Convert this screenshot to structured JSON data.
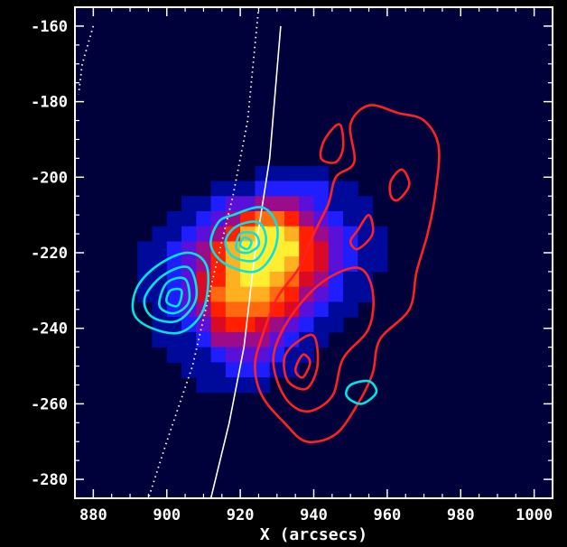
{
  "chart_data": {
    "type": "heatmap",
    "title": "",
    "xlabel": "X (arcsecs)",
    "ylabel": "",
    "xlim": [
      875,
      1005
    ],
    "ylim": [
      -285,
      -155
    ],
    "x_ticks": [
      880,
      900,
      920,
      940,
      960,
      980,
      1000
    ],
    "y_ticks": [
      -160,
      -180,
      -200,
      -220,
      -240,
      -260,
      -280
    ],
    "x_tick_labels": [
      "880",
      "900",
      "920",
      "940",
      "960",
      "980",
      "1000"
    ],
    "y_tick_labels": [
      "-160",
      "-180",
      "-200",
      "-220",
      "-240",
      "-260",
      "-280"
    ],
    "background_color": "#00003a",
    "image": {
      "description_colormap": "blue-red-yellow",
      "x0": 876,
      "y0": -285,
      "cell": 4,
      "rows_top_to_bottom": [
        "0000000000000000000000000000000",
        "0000000000000000000000000000000",
        "0000000000000000000000000000000",
        "0000000000000000000000000000000",
        "0000000000000000000000000000000",
        "0000000000000000000000000000000",
        "0000000000000000000000000000000",
        "0000000000000000000000000000000",
        "0000000000000000000000000000000",
        "0000000000000000000000000000000",
        "0000000000001111100000000000000",
        "0000000001112222211000000000000",
        "0000000112334443211100000000000",
        "0000001123467764321100000000000",
        "0000011234689986432110000000000",
        "0000112346899996532110000000000",
        "0000112346899986532110000000000",
        "0000112356899875421100000000000",
        "0000112357888764321100000000000",
        "0000012346777653211000000000000",
        "0000011235665432110000000000000",
        "0000011124444321100000000000000",
        "0000001112333211000000000000000",
        "0000000111222110000000000000000",
        "0000000011111000000000000000000",
        "0000000000000000000000000000000",
        "0000000000000000000000000000000",
        "0000000000000000000000000000000",
        "0000000000000000000000000000000",
        "0000000000000000000000000000000",
        "0000000000000000000000000000000",
        "0000000000000000000000000000000"
      ]
    },
    "limb_lines": [
      {
        "style": "solid",
        "color": "#ffffff",
        "points": [
          [
            931,
            -160
          ],
          [
            928,
            -195
          ],
          [
            924,
            -220
          ],
          [
            921,
            -245
          ],
          [
            917,
            -265
          ],
          [
            912,
            -285
          ]
        ]
      },
      {
        "style": "dotted",
        "color": "#ffffff",
        "points": [
          [
            925,
            -155
          ],
          [
            922,
            -185
          ],
          [
            918,
            -205
          ],
          [
            913,
            -225
          ],
          [
            907,
            -250
          ],
          [
            900,
            -270
          ],
          [
            895,
            -285
          ]
        ]
      },
      {
        "style": "dotted",
        "color": "#ffffff",
        "points": [
          [
            880,
            -160
          ],
          [
            877,
            -170
          ],
          [
            876,
            -178
          ]
        ]
      }
    ],
    "contours": [
      {
        "color": "#ff2222",
        "points": [
          [
            963,
            -183
          ],
          [
            970,
            -185
          ],
          [
            974,
            -192
          ],
          [
            973,
            -205
          ],
          [
            971,
            -215
          ],
          [
            968,
            -225
          ],
          [
            966,
            -235
          ],
          [
            958,
            -243
          ],
          [
            956,
            -252
          ],
          [
            952,
            -260
          ],
          [
            946,
            -268
          ],
          [
            938,
            -270
          ],
          [
            932,
            -265
          ],
          [
            926,
            -258
          ],
          [
            924,
            -250
          ],
          [
            926,
            -242
          ],
          [
            930,
            -232
          ],
          [
            936,
            -224
          ],
          [
            940,
            -215
          ],
          [
            944,
            -207
          ],
          [
            946,
            -200
          ],
          [
            951,
            -196
          ],
          [
            950,
            -186
          ],
          [
            955,
            -181
          ],
          [
            963,
            -183
          ]
        ]
      },
      {
        "color": "#ff2222",
        "points": [
          [
            942,
            -228
          ],
          [
            952,
            -224
          ],
          [
            956,
            -230
          ],
          [
            955,
            -240
          ],
          [
            948,
            -248
          ],
          [
            945,
            -258
          ],
          [
            938,
            -262
          ],
          [
            932,
            -258
          ],
          [
            929,
            -248
          ],
          [
            933,
            -238
          ],
          [
            942,
            -228
          ]
        ]
      },
      {
        "color": "#ff2222",
        "points": [
          [
            935,
            -244
          ],
          [
            940,
            -242
          ],
          [
            941,
            -250
          ],
          [
            938,
            -256
          ],
          [
            933,
            -254
          ],
          [
            932,
            -248
          ],
          [
            935,
            -244
          ]
        ]
      },
      {
        "color": "#ff2222",
        "points": [
          [
            937,
            -247
          ],
          [
            939,
            -249
          ],
          [
            937,
            -253
          ],
          [
            935,
            -251
          ],
          [
            937,
            -247
          ]
        ]
      },
      {
        "color": "#ff2222",
        "points": [
          [
            961,
            -201
          ],
          [
            964,
            -198
          ],
          [
            966,
            -202
          ],
          [
            963,
            -206
          ],
          [
            961,
            -205
          ],
          [
            961,
            -201
          ]
        ]
      },
      {
        "color": "#ff2222",
        "points": [
          [
            952,
            -214
          ],
          [
            955,
            -210
          ],
          [
            956,
            -215
          ],
          [
            952,
            -219
          ],
          [
            950,
            -217
          ],
          [
            952,
            -214
          ]
        ]
      },
      {
        "color": "#ff2222",
        "points": [
          [
            943,
            -190
          ],
          [
            947,
            -186
          ],
          [
            948,
            -192
          ],
          [
            946,
            -196
          ],
          [
            942,
            -195
          ],
          [
            943,
            -190
          ]
        ]
      },
      {
        "color": "#00e5e5",
        "points": [
          [
            918,
            -210
          ],
          [
            926,
            -208
          ],
          [
            930,
            -213
          ],
          [
            929,
            -220
          ],
          [
            924,
            -225
          ],
          [
            916,
            -223
          ],
          [
            912,
            -218
          ],
          [
            914,
            -212
          ],
          [
            918,
            -210
          ]
        ]
      },
      {
        "color": "#00e5e5",
        "points": [
          [
            919,
            -213
          ],
          [
            925,
            -212
          ],
          [
            927,
            -217
          ],
          [
            924,
            -222
          ],
          [
            918,
            -221
          ],
          [
            916,
            -217
          ],
          [
            919,
            -213
          ]
        ]
      },
      {
        "color": "#00e5e5",
        "points": [
          [
            920,
            -215
          ],
          [
            924,
            -215
          ],
          [
            925,
            -218
          ],
          [
            922,
            -220
          ],
          [
            919,
            -219
          ],
          [
            920,
            -215
          ]
        ]
      },
      {
        "color": "#00e5e5",
        "points": [
          [
            921,
            -216
          ],
          [
            923,
            -217
          ],
          [
            922,
            -219
          ],
          [
            920,
            -218
          ],
          [
            921,
            -216
          ]
        ]
      },
      {
        "color": "#00e5e5",
        "points": [
          [
            898,
            -223
          ],
          [
            906,
            -220
          ],
          [
            911,
            -224
          ],
          [
            910,
            -235
          ],
          [
            904,
            -241
          ],
          [
            896,
            -240
          ],
          [
            891,
            -236
          ],
          [
            892,
            -229
          ],
          [
            898,
            -223
          ]
        ]
      },
      {
        "color": "#00e5e5",
        "points": [
          [
            899,
            -226
          ],
          [
            906,
            -224
          ],
          [
            908,
            -232
          ],
          [
            903,
            -238
          ],
          [
            896,
            -237
          ],
          [
            894,
            -232
          ],
          [
            899,
            -226
          ]
        ]
      },
      {
        "color": "#00e5e5",
        "points": [
          [
            900,
            -228
          ],
          [
            905,
            -227
          ],
          [
            906,
            -233
          ],
          [
            902,
            -236
          ],
          [
            898,
            -234
          ],
          [
            900,
            -228
          ]
        ]
      },
      {
        "color": "#00e5e5",
        "points": [
          [
            901,
            -230
          ],
          [
            904,
            -230
          ],
          [
            903,
            -234
          ],
          [
            900,
            -233
          ],
          [
            901,
            -230
          ]
        ]
      },
      {
        "color": "#00e5e5",
        "points": [
          [
            950,
            -255
          ],
          [
            955,
            -254
          ],
          [
            957,
            -257
          ],
          [
            953,
            -260
          ],
          [
            949,
            -258
          ],
          [
            950,
            -255
          ]
        ]
      }
    ]
  }
}
